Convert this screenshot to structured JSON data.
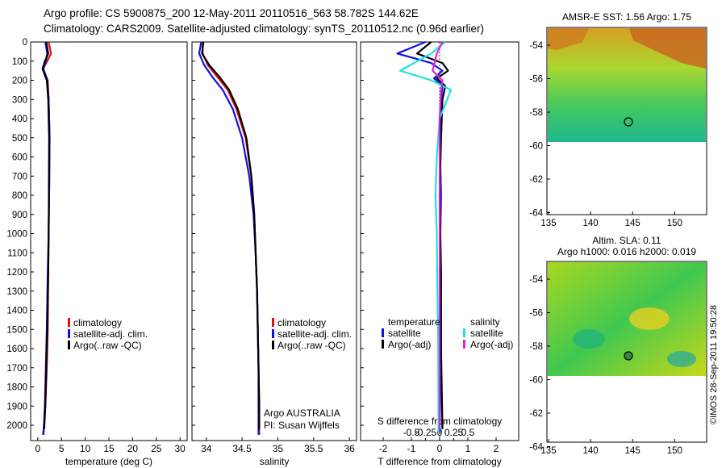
{
  "header": {
    "line1": "Argo profile: CS 5900875_200 12-May-2011 20110516_563 58.782S 144.62E",
    "line2": "Climatology: CARS2009. Satellite-adjusted climatology: synTS_20110512.nc (0.96d earlier)"
  },
  "colors": {
    "climatology": "#e01010",
    "satellite": "#1010e0",
    "argo": "#000000",
    "sal_satellite": "#20e0e0",
    "sal_argo": "#e020e0"
  },
  "depth_ticks": [
    "0",
    "100",
    "200",
    "300",
    "400",
    "500",
    "600",
    "700",
    "800",
    "900",
    "1000",
    "1100",
    "1200",
    "1300",
    "1400",
    "1500",
    "1600",
    "1700",
    "1800",
    "1900",
    "2000"
  ],
  "legend": {
    "climatology": "climatology",
    "satellite": "satellite-adj. clim.",
    "argo": "Argo(..raw -QC)"
  },
  "diff_legend": {
    "temp_title": "temperature",
    "sal_title": "salinity",
    "temp_sat": "satellite",
    "temp_argo": "Argo(-adj)",
    "sal_sat": "satellite",
    "sal_argo": "Argo(-adj)"
  },
  "argo_info": {
    "line1": "Argo AUSTRALIA",
    "line2": "PI: Susan Wijffels"
  },
  "maps": {
    "top_title": "AMSR-E SST: 1.56 Argo: 1.75",
    "bottom_title1": "Altim. SLA: 0.11",
    "bottom_title2": "Argo h1000: 0.016 h2000: 0.019",
    "lat_ticks": [
      "-54",
      "-56",
      "-58",
      "-60",
      "-62",
      "-64"
    ],
    "lon_ticks": [
      "135",
      "140",
      "145",
      "150"
    ]
  },
  "timestamp": "©IMOS 28-Sep-2011 19:50:28",
  "chart_data": [
    {
      "type": "line",
      "xlabel": "temperature (deg C)",
      "ylabel": "",
      "xlim": [
        -1.5,
        31.5
      ],
      "ylim": [
        2080,
        0
      ],
      "xticks": [
        "0",
        "5",
        "10",
        "15",
        "20",
        "25",
        "30"
      ],
      "series": [
        {
          "name": "climatology",
          "x": [
            2.3,
            2.8,
            2.0,
            1.1,
            2.1,
            2.3,
            2.5,
            2.4,
            2.3,
            2.2,
            2.1,
            1.9,
            1.6,
            1.3,
            1.1
          ],
          "y": [
            0,
            60,
            100,
            140,
            200,
            300,
            500,
            800,
            1000,
            1200,
            1500,
            1700,
            1900,
            2000,
            2050
          ]
        },
        {
          "name": "satellite-adj. clim.",
          "x": [
            1.6,
            2.0,
            1.7,
            1.2,
            2.0,
            2.3,
            2.5,
            2.4,
            2.3,
            2.1,
            1.9,
            1.7,
            1.5,
            1.3,
            1.2
          ],
          "y": [
            0,
            60,
            100,
            140,
            200,
            300,
            500,
            800,
            1000,
            1200,
            1500,
            1700,
            1900,
            2000,
            2050
          ]
        },
        {
          "name": "Argo(..raw -QC)",
          "x": [
            1.8,
            2.2,
            1.5,
            1.0,
            1.9,
            2.2,
            2.4,
            2.35,
            2.3,
            2.2,
            2.0,
            1.8,
            1.6,
            1.4,
            1.35
          ],
          "y": [
            0,
            60,
            100,
            140,
            200,
            300,
            500,
            800,
            1000,
            1200,
            1500,
            1700,
            1900,
            2000,
            2020
          ]
        }
      ]
    },
    {
      "type": "line",
      "xlabel": "salinity",
      "ylabel": "",
      "xlim": [
        33.8,
        36.1
      ],
      "ylim": [
        2080,
        0
      ],
      "xticks": [
        "34",
        "34.5",
        "35",
        "35.5",
        "36"
      ],
      "series": [
        {
          "name": "climatology",
          "x": [
            33.95,
            33.95,
            34.02,
            34.15,
            34.3,
            34.42,
            34.55,
            34.63,
            34.67,
            34.69,
            34.71,
            34.72,
            34.73,
            34.74,
            34.74
          ],
          "y": [
            0,
            60,
            120,
            180,
            250,
            350,
            500,
            700,
            900,
            1100,
            1300,
            1500,
            1700,
            1900,
            2050
          ]
        },
        {
          "name": "satellite-adj. clim.",
          "x": [
            33.93,
            33.9,
            33.97,
            34.08,
            34.23,
            34.37,
            34.5,
            34.6,
            34.66,
            34.69,
            34.71,
            34.72,
            34.73,
            34.73,
            34.73
          ],
          "y": [
            0,
            60,
            120,
            180,
            250,
            350,
            500,
            700,
            900,
            1100,
            1300,
            1500,
            1700,
            1900,
            2050
          ]
        },
        {
          "name": "Argo(..raw -QC)",
          "x": [
            33.96,
            33.94,
            34.04,
            34.18,
            34.32,
            34.44,
            34.56,
            34.63,
            34.67,
            34.69,
            34.71,
            34.72,
            34.73,
            34.74,
            34.74
          ],
          "y": [
            0,
            60,
            120,
            180,
            250,
            350,
            500,
            700,
            900,
            1100,
            1300,
            1500,
            1700,
            1900,
            2020
          ]
        }
      ]
    },
    {
      "type": "line",
      "xlabel": "T difference from climatology",
      "top_label": "S difference from climatology",
      "ylabel": "",
      "xlim": [
        -2.8,
        2.8
      ],
      "ylim": [
        2080,
        0
      ],
      "xticks": [
        "-2",
        "-1",
        "0",
        "1",
        "2"
      ],
      "top_ticks": [
        "-0.5",
        "-0.25",
        "0",
        "0.25",
        "0.5"
      ],
      "series": [
        {
          "name": "temperature satellite",
          "x": [
            -0.5,
            -1.5,
            -0.3,
            0.1,
            -0.2,
            0.1,
            0.05,
            0.0,
            0.05,
            0.0,
            0.05,
            0.0
          ],
          "y": [
            0,
            60,
            110,
            150,
            190,
            230,
            300,
            500,
            800,
            1200,
            1600,
            2040
          ]
        },
        {
          "name": "temperature Argo(-adj)",
          "x": [
            -0.3,
            -0.8,
            0.1,
            0.3,
            -0.1,
            0.2,
            0.1,
            0.05,
            0.0,
            0.05,
            0.05,
            0.1
          ],
          "y": [
            0,
            60,
            110,
            150,
            190,
            230,
            300,
            500,
            800,
            1200,
            1600,
            2020
          ]
        },
        {
          "name": "salinity satellite",
          "x": [
            0.2,
            -0.3,
            -1.4,
            -0.3,
            0.4,
            0.0,
            -0.1,
            -0.15,
            -0.1,
            -0.08,
            -0.05,
            -0.04
          ],
          "y": [
            0,
            60,
            150,
            200,
            250,
            400,
            600,
            800,
            1000,
            1300,
            1600,
            2040
          ]
        },
        {
          "name": "salinity Argo(-adj)",
          "x": [
            0.1,
            -0.1,
            -0.25,
            0.1,
            0.05,
            0.0,
            0.0,
            0.0,
            0.0,
            0.0,
            0.0,
            0.0
          ],
          "y": [
            0,
            60,
            150,
            200,
            250,
            400,
            600,
            800,
            1000,
            1300,
            1600,
            2020
          ]
        }
      ]
    }
  ]
}
